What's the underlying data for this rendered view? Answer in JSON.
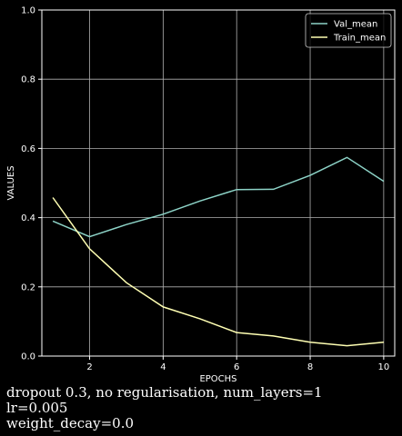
{
  "chart_data": {
    "type": "line",
    "xlabel": "EPOCHS",
    "ylabel": "VALUES",
    "xlim": [
      0.7,
      10.3
    ],
    "ylim": [
      0,
      1
    ],
    "xticks": [
      2,
      4,
      6,
      8,
      10
    ],
    "yticks": [
      0.0,
      0.2,
      0.4,
      0.6,
      0.8,
      1.0
    ],
    "grid": true,
    "legend_position": "top-right",
    "x": [
      1,
      2,
      3,
      4,
      5,
      6,
      7,
      8,
      9,
      10
    ],
    "series": [
      {
        "name": "Val_mean",
        "color": "#8dd3c7",
        "values": [
          0.39,
          0.345,
          0.38,
          0.41,
          0.448,
          0.481,
          0.482,
          0.522,
          0.574,
          0.505
        ]
      },
      {
        "name": "Train_mean",
        "color": "#ffffb3",
        "values": [
          0.458,
          0.31,
          0.212,
          0.142,
          0.108,
          0.068,
          0.058,
          0.04,
          0.03,
          0.04
        ]
      }
    ]
  },
  "caption": {
    "line1": "dropout 0.3, no regularisation, num_layers=1",
    "line2": "lr=0.005",
    "line3": "weight_decay=0.0"
  }
}
